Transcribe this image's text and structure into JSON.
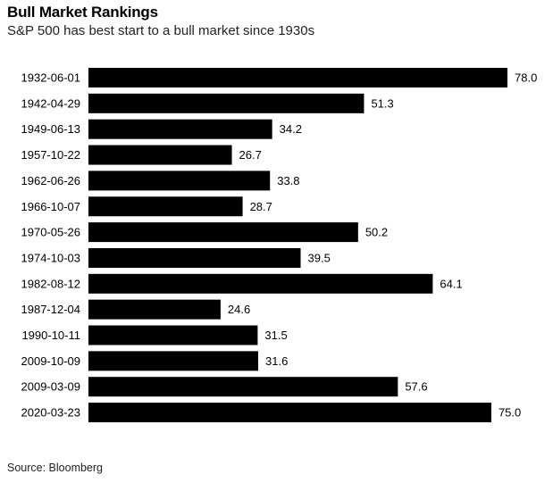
{
  "header": {
    "title": "Bull Market Rankings",
    "subtitle": "S&P 500 has best start to a bull market since 1930s"
  },
  "footer": {
    "source": "Source: Bloomberg"
  },
  "chart_data": {
    "type": "bar",
    "orientation": "horizontal",
    "categories": [
      "1932-06-01",
      "1942-04-29",
      "1949-06-13",
      "1957-10-22",
      "1962-06-26",
      "1966-10-07",
      "1970-05-26",
      "1974-10-03",
      "1982-08-12",
      "1987-12-04",
      "1990-10-11",
      "2009-10-09",
      "2009-03-09",
      "2020-03-23"
    ],
    "values": [
      78.0,
      51.3,
      34.2,
      26.7,
      33.8,
      28.7,
      50.2,
      39.5,
      64.1,
      24.6,
      31.5,
      31.6,
      57.6,
      75.0
    ],
    "value_labels": [
      "78.0",
      "51.3",
      "34.2",
      "26.7",
      "33.8",
      "28.7",
      "50.2",
      "39.5",
      "64.1",
      "24.6",
      "31.5",
      "31.6",
      "57.6",
      "75.0"
    ],
    "title": "Bull Market Rankings",
    "subtitle": "S&P 500 has best start to a bull market since 1930s",
    "xlabel": "",
    "ylabel": "",
    "xlim": [
      0,
      78.0
    ],
    "grid": false,
    "bar_color": "#000000"
  }
}
